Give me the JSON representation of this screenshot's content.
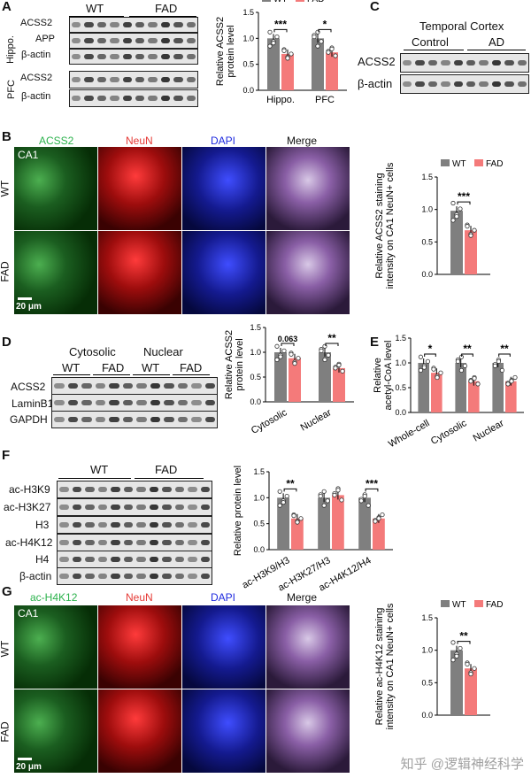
{
  "panels": {
    "A": {
      "label": "A",
      "groups": [
        "WT",
        "FAD"
      ],
      "region_hippo": "Hippo.",
      "region_pfc": "PFC",
      "rows_hippo": [
        "ACSS2",
        "APP",
        "β-actin"
      ],
      "rows_pfc": [
        "ACSS2",
        "β-actin"
      ],
      "chart_ylabel": "Relative ACSS2\nprotein level"
    },
    "B": {
      "label": "B",
      "channels": [
        "ACSS2",
        "NeuN",
        "DAPI",
        "Merge"
      ],
      "rows": [
        "WT",
        "FAD"
      ],
      "region": "CA1",
      "scale": "20 μm",
      "chart_ylabel": "Relative ACSS2 staining\nintensity on CA1 NeuN+ cells"
    },
    "C": {
      "label": "C",
      "title": "Temporal Cortex",
      "groups": [
        "Control",
        "AD"
      ],
      "rows": [
        "ACSS2",
        "β-actin"
      ]
    },
    "D": {
      "label": "D",
      "fractions": [
        "Cytosolic",
        "Nuclear"
      ],
      "groups": [
        "WT",
        "FAD",
        "WT",
        "FAD"
      ],
      "rows": [
        "ACSS2",
        "LaminB1",
        "GAPDH"
      ],
      "chart_ylabel": "Relative ACSS2\nprotein level"
    },
    "E": {
      "label": "E",
      "chart_ylabel": "Relative\nacetyl-CoA level"
    },
    "F": {
      "label": "F",
      "groups": [
        "WT",
        "FAD"
      ],
      "rows": [
        "ac-H3K9",
        "ac-H3K27",
        "H3",
        "ac-H4K12",
        "H4",
        "β-actin"
      ],
      "chart_ylabel": "Relative protein level"
    },
    "G": {
      "label": "G",
      "channels": [
        "ac-H4K12",
        "NeuN",
        "DAPI",
        "Merge"
      ],
      "rows": [
        "WT",
        "FAD"
      ],
      "region": "CA1",
      "scale": "20 μm",
      "chart_ylabel": "Relative ac-H4K12 staining\nintensity on CA1 NeuN+ cells"
    }
  },
  "legend": {
    "wt": "WT",
    "fad": "FAD"
  },
  "colors": {
    "wt": "#7f7f7f",
    "fad": "#f47a7a"
  },
  "watermark": "知乎 @逻辑神经科学",
  "chart_data": [
    {
      "id": "A",
      "type": "bar",
      "categories": [
        "Hippo.",
        "PFC"
      ],
      "series": [
        {
          "name": "WT",
          "values": [
            1.0,
            1.0
          ]
        },
        {
          "name": "FAD",
          "values": [
            0.7,
            0.73
          ]
        }
      ],
      "ylim": [
        0,
        1.5
      ],
      "yticks": [
        0.0,
        0.5,
        1.0,
        1.5
      ],
      "significance": [
        "***",
        "*"
      ],
      "ylabel": "Relative ACSS2\nprotein level"
    },
    {
      "id": "B",
      "type": "bar",
      "categories": [
        ""
      ],
      "series": [
        {
          "name": "WT",
          "values": [
            0.98
          ]
        },
        {
          "name": "FAD",
          "values": [
            0.68
          ]
        }
      ],
      "ylim": [
        0,
        1.5
      ],
      "yticks": [
        0.0,
        0.5,
        1.0,
        1.5
      ],
      "significance": [
        "***"
      ],
      "ylabel": "Relative ACSS2 staining\nintensity on CA1 NeuN+ cells"
    },
    {
      "id": "D",
      "type": "bar",
      "categories": [
        "Cytosolic",
        "Nuclear"
      ],
      "series": [
        {
          "name": "WT",
          "values": [
            1.0,
            1.0
          ]
        },
        {
          "name": "FAD",
          "values": [
            0.88,
            0.68
          ]
        }
      ],
      "ylim": [
        0,
        1.5
      ],
      "yticks": [
        0.0,
        0.5,
        1.0,
        1.5
      ],
      "significance": [
        "0.063",
        "**"
      ],
      "ylabel": "Relative ACSS2\nprotein level"
    },
    {
      "id": "E",
      "type": "bar",
      "categories": [
        "Whole-cell",
        "Cytosolic",
        "Nuclear"
      ],
      "series": [
        {
          "name": "WT",
          "values": [
            1.0,
            1.0,
            1.0
          ]
        },
        {
          "name": "FAD",
          "values": [
            0.8,
            0.63,
            0.63
          ]
        }
      ],
      "ylim": [
        0,
        1.5
      ],
      "yticks": [
        0.0,
        0.5,
        1.0,
        1.5
      ],
      "significance": [
        "*",
        "**",
        "**"
      ],
      "ylabel": "Relative\nacetyl-CoA level"
    },
    {
      "id": "F",
      "type": "bar",
      "categories": [
        "ac-H3K9/H3",
        "ac-H3K27/H3",
        "ac-H4K12/H4"
      ],
      "series": [
        {
          "name": "WT",
          "values": [
            1.0,
            1.0,
            1.0
          ]
        },
        {
          "name": "FAD",
          "values": [
            0.6,
            1.05,
            0.6
          ]
        }
      ],
      "ylim": [
        0,
        1.5
      ],
      "yticks": [
        0.0,
        0.5,
        1.0,
        1.5
      ],
      "significance": [
        "**",
        "",
        "***"
      ],
      "ylabel": "Relative protein level"
    },
    {
      "id": "G",
      "type": "bar",
      "categories": [
        ""
      ],
      "series": [
        {
          "name": "WT",
          "values": [
            1.0
          ]
        },
        {
          "name": "FAD",
          "values": [
            0.72
          ]
        }
      ],
      "ylim": [
        0,
        1.5
      ],
      "yticks": [
        0.0,
        0.5,
        1.0,
        1.5
      ],
      "significance": [
        "**"
      ],
      "ylabel": "Relative ac-H4K12 staining\nintensity on CA1 NeuN+ cells"
    }
  ]
}
